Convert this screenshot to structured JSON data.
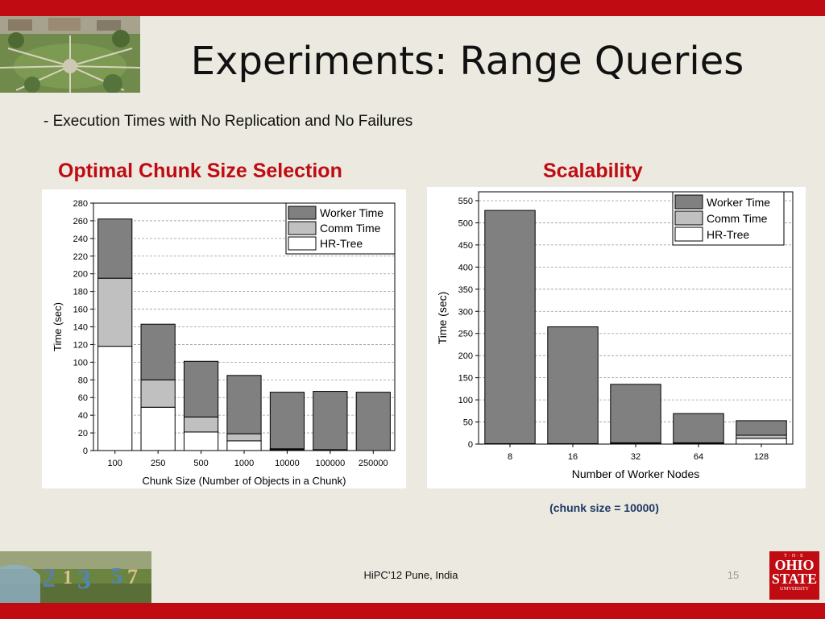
{
  "slide": {
    "title": "Experiments: Range Queries",
    "subtitle": "- Execution Times with No Replication and No Failures",
    "left_heading": "Optimal Chunk Size Selection",
    "right_heading": "Scalability",
    "note": "(chunk size = 10000)",
    "footer": "HiPC’12 Pune, India",
    "page_number": "15",
    "logo": {
      "line1": "T·H·E",
      "line2a": "OHIO",
      "line2b": "STATE",
      "line3": "UNIVERSITY"
    },
    "colors": {
      "accent": "#c00b12",
      "background": "#ebe9e0",
      "worker": "#808080",
      "comm": "#c0c0c0",
      "hrtree": "#ffffff"
    }
  },
  "chart_data": [
    {
      "type": "bar",
      "stacked": true,
      "title": "",
      "xlabel": "Chunk Size (Number of Objects in a Chunk)",
      "ylabel": "Time (sec)",
      "categories": [
        "100",
        "250",
        "500",
        "1000",
        "10000",
        "100000",
        "250000"
      ],
      "ylim": [
        0,
        280
      ],
      "yticks": [
        "0",
        "20",
        "40",
        "60",
        "80",
        "100",
        "120",
        "140",
        "160",
        "180",
        "200",
        "220",
        "240",
        "260",
        "280"
      ],
      "grid": true,
      "legend_position": "top-right",
      "series": [
        {
          "name": "HR-Tree",
          "color": "#ffffff",
          "values": [
            118,
            49,
            21,
            11,
            1,
            1,
            0
          ]
        },
        {
          "name": "Comm Time",
          "color": "#c0c0c0",
          "values": [
            77,
            31,
            17,
            8,
            1,
            0,
            0
          ]
        },
        {
          "name": "Worker Time",
          "color": "#808080",
          "values": [
            67,
            63,
            63,
            66,
            64,
            66,
            66
          ]
        }
      ]
    },
    {
      "type": "bar",
      "stacked": true,
      "title": "",
      "xlabel": "Number of Worker Nodes",
      "ylabel": "Time (sec)",
      "categories": [
        "8",
        "16",
        "32",
        "64",
        "128"
      ],
      "ylim": [
        0,
        570
      ],
      "yticks": [
        "0",
        "50",
        "100",
        "150",
        "200",
        "250",
        "300",
        "350",
        "400",
        "450",
        "500",
        "550"
      ],
      "grid": true,
      "legend_position": "top-right",
      "series": [
        {
          "name": "HR-Tree",
          "color": "#ffffff",
          "values": [
            1,
            1,
            2,
            2,
            13
          ]
        },
        {
          "name": "Comm Time",
          "color": "#c0c0c0",
          "values": [
            0,
            0,
            1,
            1,
            7
          ]
        },
        {
          "name": "Worker Time",
          "color": "#808080",
          "values": [
            527,
            264,
            132,
            66,
            33
          ]
        }
      ]
    }
  ]
}
